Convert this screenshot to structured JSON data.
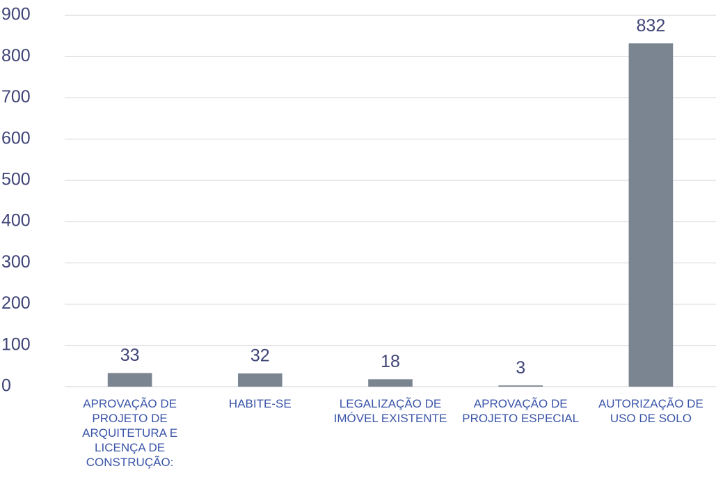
{
  "chart_data": {
    "type": "bar",
    "categories": [
      "APROVAÇÃO DE PROJETO DE ARQUITETURA E LICENÇA DE CONSTRUÇÃO:",
      "HABITE-SE",
      "LEGALIZAÇÃO DE IMÓVEL EXISTENTE",
      "APROVAÇÃO DE PROJETO ESPECIAL",
      "AUTORIZAÇÃO DE USO DE SOLO"
    ],
    "values": [
      33,
      32,
      18,
      3,
      832
    ],
    "color": "#7b8591",
    "ylim": [
      0,
      900
    ],
    "yticks": [
      0,
      100,
      200,
      300,
      400,
      500,
      600,
      700,
      800,
      900
    ],
    "grid": true
  }
}
